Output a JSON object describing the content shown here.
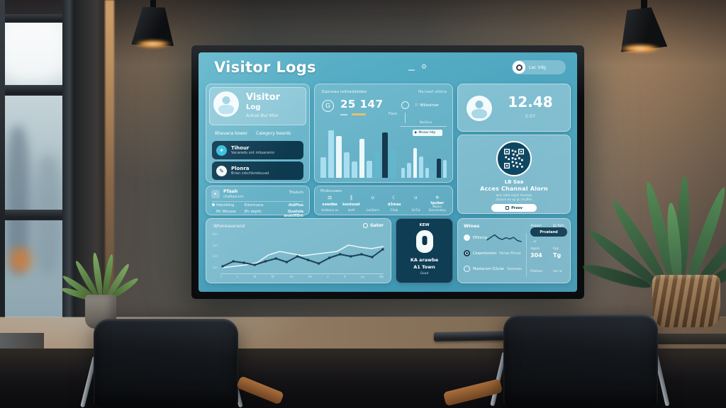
{
  "colors": {
    "screen_teal": "#4aa3bd",
    "panel_dark": "#0e3a50",
    "accent_gold": "#e6c169",
    "bar_light": "#a9def0",
    "bar_white": "#eef8fb",
    "bar_dark": "#16394e",
    "bar_teal": "#63b7cc"
  },
  "screen": {
    "header": {
      "title": "Visitor Logs",
      "profile_label": "Lac Vdg"
    },
    "visitor_card": {
      "title": "Visitor",
      "subtitle": "Log",
      "note": "Aukaó Bur Mon",
      "tabs": [
        {
          "label": "Bhavana kower"
        },
        {
          "label": "Calegory beards"
        }
      ],
      "rows": [
        {
          "label": "Tihour",
          "sub": "Vacaredo ont mbsaramn"
        },
        {
          "label": "Plonra",
          "sub": "Brian czkchlorekuvad"
        }
      ]
    },
    "traffic_card": {
      "title": "Eqonnau tekhaddaides",
      "icon": "G",
      "value": "25 147",
      "value_sub": "Fovo",
      "right_title": "Ma kaart attima",
      "right_item": "Wilsolnier",
      "badge": "Mnaar hilp",
      "axis_label": "Neidina"
    },
    "time_card": {
      "value": "12.48",
      "sub": "5:07"
    },
    "qr_card": {
      "line1": "LB Saa",
      "line2": "Acces Channal Alorn",
      "small1": "wre rokd sajrit mumse",
      "small2": "jricace as sp ip chuffes",
      "button": "Przov"
    },
    "meta_card": {
      "title": "PTaah",
      "title_sub": "chaRazcvm",
      "right": "Triulum",
      "rows": [
        {
          "c1": "Helcidting",
          "c2": "Edvimvera",
          "c3": "AidPlus"
        },
        {
          "c1": "Mc Wousse",
          "c2": "JPc depifs",
          "c3": "Quatola anatifiDm"
        }
      ]
    },
    "stats_strip": {
      "title": "Ptrdscuuass",
      "items": [
        {
          "glyph": "⚖",
          "value": "sowdbe",
          "label": "Asllasca ss"
        },
        {
          "glyph": "∥",
          "value": "kontozat",
          "label": "Iseft"
        },
        {
          "glyph": "∪",
          "value": "",
          "label": "LarQern"
        },
        {
          "glyph": "☾",
          "value": "d3mas",
          "label": "Fliuk"
        },
        {
          "glyph": "∪",
          "value": "",
          "label": "SeTia"
        },
        {
          "glyph": "✳",
          "value": "tpuber",
          "label": "Noars Qarconduy"
        }
      ]
    },
    "trend_card": {
      "title": "Whereaverand",
      "legend": "Gator",
      "y_ticks": [
        "4m",
        "3m",
        "2m",
        "1m"
      ]
    },
    "door_card": {
      "title": "KEW",
      "line1": "KA arawbe",
      "line2": "A1 Town",
      "line3": "Good"
    },
    "overview_card": {
      "title": "Wines",
      "link1": "Aspen",
      "link2": "Taln",
      "legend_rows": [
        {
          "label": "Effinncp",
          "extra": ""
        },
        {
          "label": "Ceqsmtsremi",
          "extra": "Hsrae   Rhcat"
        },
        {
          "label": "Mastacom Q2ular",
          "extra": "Samows"
        }
      ],
      "button": "Prcatand",
      "button_sub": "ur",
      "stat1": {
        "label": "Agam",
        "value": "304",
        "foot": "Plattasc"
      },
      "stat2": {
        "label": "Kgs",
        "value": "Tg",
        "foot": "asc w"
      }
    }
  },
  "chart_data": [
    {
      "type": "bar",
      "title": "Eqonnau tekhaddaides",
      "ylim": [
        0,
        100
      ],
      "bar_colors": {
        "c": "#a9def0",
        "w": "#eef8fb",
        "d": "#16394e",
        "t": "#63b7cc"
      },
      "groups": [
        {
          "bars": [
            {
              "v": 38,
              "c": "c"
            },
            {
              "v": 88,
              "c": "c"
            },
            {
              "v": 78,
              "c": "w"
            },
            {
              "v": 48,
              "c": "c"
            },
            {
              "v": 30,
              "c": "c"
            },
            {
              "v": 72,
              "c": "w"
            },
            {
              "v": 32,
              "c": "c"
            },
            {
              "v": 48,
              "c": "t"
            },
            {
              "v": 84,
              "c": "d"
            },
            {
              "v": 52,
              "c": "t"
            }
          ]
        },
        {
          "bars": [
            {
              "v": 26,
              "c": "c"
            },
            {
              "v": 38,
              "c": "c"
            },
            {
              "v": 78,
              "c": "w"
            },
            {
              "v": 56,
              "c": "c"
            },
            {
              "v": 26,
              "c": "c"
            },
            {
              "v": 16,
              "c": "t"
            },
            {
              "v": 50,
              "c": "d"
            },
            {
              "v": 46,
              "c": "c"
            }
          ]
        }
      ]
    },
    {
      "type": "line",
      "title": "Whereaverand",
      "ylim": [
        0,
        100
      ],
      "x_ticks": [
        "t",
        "c",
        "kf",
        "tti",
        "ds",
        "hk",
        "v",
        "d",
        "yu",
        "bb"
      ],
      "series": [
        {
          "name": "previous",
          "color": "#e9f6f9",
          "width": 1.6,
          "values": [
            6,
            10,
            14,
            20,
            42,
            52,
            46,
            40,
            44,
            48,
            52,
            70,
            64,
            60,
            66
          ]
        },
        {
          "name": "current",
          "color": "#1d4258",
          "width": 2,
          "markers": true,
          "marker_color": "#223d50",
          "values": [
            10,
            24,
            20,
            14,
            24,
            32,
            22,
            38,
            28,
            18,
            34,
            44,
            38,
            44,
            36,
            58
          ]
        }
      ]
    },
    {
      "type": "line",
      "title": "overview sparkline",
      "ylim": [
        0,
        100
      ],
      "series": [
        {
          "name": "trend",
          "color": "#17455c",
          "width": 1.5,
          "values": [
            35,
            55,
            75,
            50,
            38,
            52,
            42,
            55,
            30,
            22
          ]
        }
      ]
    }
  ]
}
